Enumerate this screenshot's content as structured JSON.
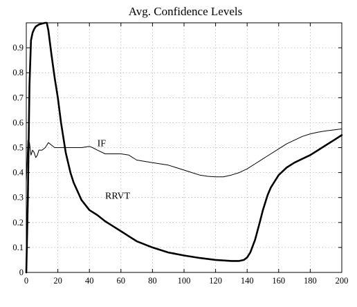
{
  "chart_data": {
    "type": "line",
    "title": "Avg. Confidence Levels",
    "xlabel": "",
    "ylabel": "",
    "xlim": [
      0,
      200
    ],
    "ylim": [
      0,
      1
    ],
    "grid": true,
    "xticks": [
      0,
      20,
      40,
      60,
      80,
      100,
      120,
      140,
      160,
      180,
      200
    ],
    "yticks": [
      0,
      0.1,
      0.2,
      0.3,
      0.4,
      0.5,
      0.6,
      0.7,
      0.8,
      0.9
    ],
    "series": [
      {
        "name": "IF",
        "color": "#000000",
        "weight": "thin",
        "x": [
          0,
          1,
          2,
          3,
          4,
          5,
          6,
          7,
          8,
          10,
          12,
          14,
          16,
          18,
          20,
          25,
          30,
          35,
          40,
          42,
          45,
          50,
          55,
          60,
          65,
          70,
          75,
          80,
          85,
          90,
          95,
          100,
          105,
          110,
          115,
          120,
          125,
          130,
          135,
          140,
          145,
          150,
          155,
          160,
          165,
          170,
          175,
          180,
          185,
          190,
          195,
          200
        ],
        "y": [
          0.36,
          0.53,
          0.52,
          0.47,
          0.49,
          0.48,
          0.46,
          0.47,
          0.49,
          0.49,
          0.5,
          0.52,
          0.51,
          0.5,
          0.5,
          0.5,
          0.5,
          0.5,
          0.505,
          0.5,
          0.49,
          0.475,
          0.475,
          0.475,
          0.47,
          0.45,
          0.445,
          0.44,
          0.435,
          0.43,
          0.42,
          0.41,
          0.4,
          0.39,
          0.385,
          0.383,
          0.383,
          0.39,
          0.4,
          0.415,
          0.435,
          0.455,
          0.475,
          0.495,
          0.515,
          0.53,
          0.545,
          0.555,
          0.562,
          0.567,
          0.571,
          0.575
        ]
      },
      {
        "name": "RRVT",
        "color": "#000000",
        "weight": "thick",
        "x": [
          0,
          1,
          2,
          3,
          4,
          5,
          6,
          8,
          10,
          12,
          13,
          14,
          16,
          18,
          20,
          22,
          25,
          28,
          30,
          35,
          40,
          45,
          50,
          55,
          60,
          65,
          70,
          80,
          90,
          100,
          110,
          120,
          130,
          135,
          138,
          140,
          142,
          145,
          148,
          150,
          153,
          155,
          158,
          160,
          165,
          170,
          175,
          180,
          185,
          190,
          195,
          200
        ],
        "y": [
          0.0,
          0.3,
          0.75,
          0.93,
          0.96,
          0.975,
          0.985,
          0.993,
          0.997,
          1.0,
          1.0,
          0.97,
          0.87,
          0.78,
          0.7,
          0.6,
          0.48,
          0.4,
          0.36,
          0.29,
          0.25,
          0.23,
          0.205,
          0.185,
          0.165,
          0.145,
          0.125,
          0.1,
          0.08,
          0.068,
          0.058,
          0.05,
          0.046,
          0.046,
          0.05,
          0.06,
          0.08,
          0.13,
          0.2,
          0.25,
          0.31,
          0.34,
          0.37,
          0.39,
          0.42,
          0.44,
          0.455,
          0.47,
          0.49,
          0.51,
          0.53,
          0.55
        ]
      }
    ],
    "annotations": [
      {
        "text": "IF",
        "x": 45,
        "y": 0.505
      },
      {
        "text": "RRVT",
        "x": 50,
        "y": 0.295
      }
    ]
  }
}
